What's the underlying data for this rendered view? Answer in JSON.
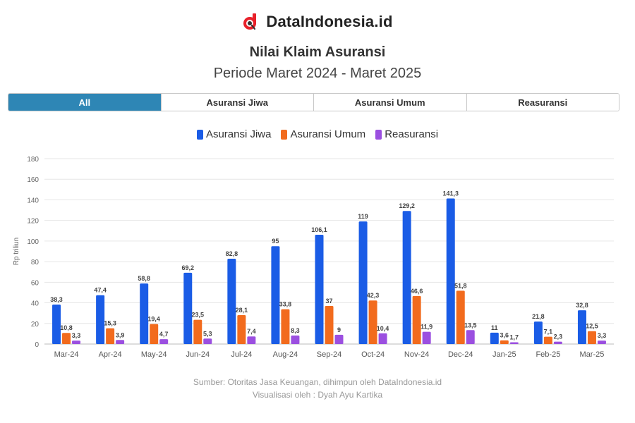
{
  "brand": {
    "name": "DataIndonesia.id",
    "logo_color": "#e8202a"
  },
  "header": {
    "title": "Nilai Klaim Asuransi",
    "subtitle": "Periode Maret 2024 - Maret 2025"
  },
  "tabs": [
    {
      "label": "All",
      "active": true
    },
    {
      "label": "Asuransi Jiwa",
      "active": false
    },
    {
      "label": "Asuransi Umum",
      "active": false
    },
    {
      "label": "Reasuransi",
      "active": false
    }
  ],
  "chart_data": {
    "type": "bar",
    "title": "Nilai Klaim Asuransi",
    "subtitle": "Periode Maret 2024 - Maret 2025",
    "ylabel": "Rp triliun",
    "xlabel": "",
    "ylim": [
      0,
      180
    ],
    "yticks": [
      0,
      20,
      40,
      60,
      80,
      100,
      120,
      140,
      160,
      180
    ],
    "grid": true,
    "legend_position": "top-center",
    "categories": [
      "Mar-24",
      "Apr-24",
      "May-24",
      "Jun-24",
      "Jul-24",
      "Aug-24",
      "Sep-24",
      "Oct-24",
      "Nov-24",
      "Dec-24",
      "Jan-25",
      "Feb-25",
      "Mar-25"
    ],
    "series": [
      {
        "name": "Asuransi Jiwa",
        "color": "#1a5ce6",
        "values": [
          38.3,
          47.4,
          58.8,
          69.2,
          82.8,
          95,
          106.1,
          119,
          129.2,
          141.3,
          11,
          21.8,
          32.8
        ],
        "labels": [
          "38,3",
          "47,4",
          "58,8",
          "69,2",
          "82,8",
          "95",
          "106,1",
          "119",
          "129,2",
          "141,3",
          "11",
          "21,8",
          "32,8"
        ]
      },
      {
        "name": "Asuransi Umum",
        "color": "#f26b1d",
        "values": [
          10.8,
          15.3,
          19.4,
          23.5,
          28.1,
          33.8,
          37,
          42.3,
          46.6,
          51.8,
          3.6,
          7.1,
          12.5
        ],
        "labels": [
          "10,8",
          "15,3",
          "19,4",
          "23,5",
          "28,1",
          "33,8",
          "37",
          "42,3",
          "46,6",
          "51,8",
          "3,6",
          "7,1",
          "12,5"
        ]
      },
      {
        "name": "Reasuransi",
        "color": "#9b4fe0",
        "values": [
          3.3,
          3.9,
          4.7,
          5.3,
          7.4,
          8.3,
          9,
          10.4,
          11.9,
          13.5,
          1.7,
          2.3,
          3.3
        ],
        "labels": [
          "3,3",
          "3,9",
          "4,7",
          "5,3",
          "7,4",
          "8,3",
          "9",
          "10,4",
          "11,9",
          "13,5",
          "1,7",
          "2,3",
          "3,3"
        ]
      }
    ]
  },
  "footer": {
    "source": "Sumber: Otoritas Jasa Keuangan, dihimpun oleh DataIndonesia.id",
    "credit": "Visualisasi oleh : Dyah Ayu Kartika"
  }
}
